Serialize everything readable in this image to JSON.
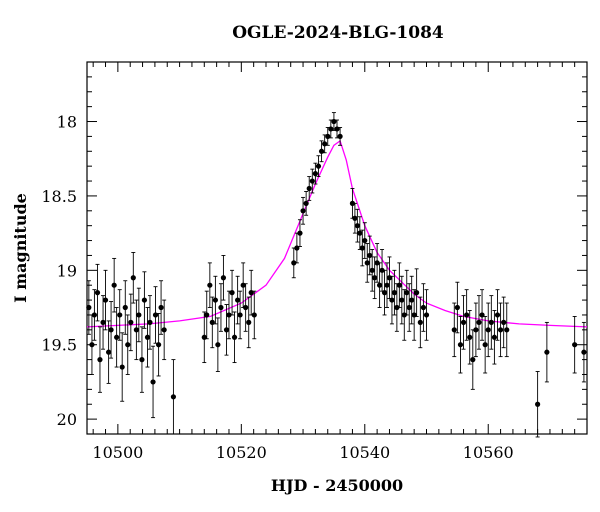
{
  "chart_data": {
    "type": "scatter",
    "title": "OGLE-2024-BLG-1084",
    "xlabel": "HJD - 2450000",
    "ylabel": "I magnitude",
    "xlim": [
      10495,
      10576
    ],
    "ylim": [
      20.1,
      17.6
    ],
    "y_inverted": true,
    "xticks": [
      10500,
      10520,
      10540,
      10560
    ],
    "yticks": [
      18,
      18.5,
      19,
      19.5,
      20
    ],
    "ytick_labels": [
      "18",
      "18.5",
      "19",
      "19.5",
      "20"
    ],
    "grid": false,
    "legend": "none",
    "colors": {
      "points": "#000000",
      "model": "#ff00ff"
    },
    "series": [
      {
        "kind": "points_with_errorbars",
        "x": [
          10495.3,
          10495.8,
          10496.2,
          10496.7,
          10497.1,
          10497.6,
          10498.0,
          10498.5,
          10498.9,
          10499.4,
          10499.8,
          10500.3,
          10500.7,
          10501.2,
          10501.6,
          10502.1,
          10502.5,
          10503.0,
          10503.4,
          10503.9,
          10504.3,
          10504.8,
          10505.2,
          10505.7,
          10506.1,
          10506.6,
          10507.0,
          10507.5,
          10509.0,
          10514.0,
          10514.4,
          10514.9,
          10515.3,
          10515.8,
          10516.2,
          10516.7,
          10517.1,
          10517.6,
          10518.0,
          10518.5,
          10518.9,
          10519.4,
          10519.8,
          10520.3,
          10520.7,
          10521.2,
          10521.6,
          10522.1,
          10528.5,
          10529.0,
          10529.5,
          10530.0,
          10530.5,
          10531.0,
          10531.5,
          10532.0,
          10532.5,
          10533.0,
          10533.5,
          10534.0,
          10534.5,
          10535.0,
          10535.5,
          10536.0,
          10538.0,
          10538.4,
          10538.8,
          10539.2,
          10539.6,
          10540.0,
          10540.4,
          10540.8,
          10541.2,
          10541.6,
          10542.0,
          10542.4,
          10542.8,
          10543.2,
          10543.6,
          10544.0,
          10544.4,
          10544.8,
          10545.2,
          10545.6,
          10546.0,
          10546.4,
          10546.8,
          10547.2,
          10547.6,
          10548.0,
          10548.4,
          10549.0,
          10549.5,
          10550.0,
          10554.5,
          10555.0,
          10555.5,
          10556.0,
          10556.5,
          10557.0,
          10557.5,
          10558.0,
          10558.5,
          10559.0,
          10559.5,
          10560.0,
          10560.5,
          10561.0,
          10561.5,
          10562.0,
          10562.5,
          10563.0,
          10568.0,
          10569.5,
          10574.0,
          10575.5
        ],
        "y": [
          19.25,
          19.5,
          19.3,
          19.15,
          19.6,
          19.35,
          19.2,
          19.55,
          19.4,
          19.1,
          19.45,
          19.3,
          19.65,
          19.25,
          19.5,
          19.35,
          19.05,
          19.4,
          19.3,
          19.6,
          19.2,
          19.45,
          19.35,
          19.75,
          19.3,
          19.5,
          19.25,
          19.4,
          19.85,
          19.45,
          19.3,
          19.1,
          19.35,
          19.2,
          19.5,
          19.25,
          19.05,
          19.4,
          19.3,
          19.15,
          19.45,
          19.2,
          19.3,
          19.1,
          19.25,
          19.35,
          19.15,
          19.3,
          18.95,
          18.85,
          18.75,
          18.6,
          18.55,
          18.45,
          18.4,
          18.35,
          18.3,
          18.2,
          18.15,
          18.1,
          18.05,
          18.0,
          18.05,
          18.1,
          18.55,
          18.65,
          18.7,
          18.75,
          18.85,
          18.8,
          18.95,
          18.9,
          19.0,
          19.05,
          18.95,
          19.1,
          19.0,
          19.15,
          19.1,
          19.05,
          19.2,
          19.15,
          19.25,
          19.1,
          19.2,
          19.3,
          19.15,
          19.25,
          19.2,
          19.3,
          19.15,
          19.35,
          19.25,
          19.3,
          19.4,
          19.25,
          19.5,
          19.35,
          19.3,
          19.45,
          19.6,
          19.4,
          19.35,
          19.3,
          19.5,
          19.4,
          19.35,
          19.45,
          19.3,
          19.4,
          19.35,
          19.4,
          19.9,
          19.55,
          19.5,
          19.55
        ],
        "yerr": [
          0.18,
          0.2,
          0.17,
          0.19,
          0.22,
          0.18,
          0.2,
          0.21,
          0.19,
          0.18,
          0.2,
          0.17,
          0.23,
          0.18,
          0.2,
          0.19,
          0.17,
          0.2,
          0.18,
          0.22,
          0.19,
          0.2,
          0.18,
          0.24,
          0.19,
          0.21,
          0.18,
          0.2,
          0.25,
          0.17,
          0.16,
          0.15,
          0.17,
          0.16,
          0.18,
          0.16,
          0.15,
          0.17,
          0.16,
          0.15,
          0.17,
          0.16,
          0.16,
          0.15,
          0.16,
          0.17,
          0.15,
          0.16,
          0.1,
          0.1,
          0.09,
          0.09,
          0.08,
          0.08,
          0.08,
          0.07,
          0.07,
          0.07,
          0.06,
          0.06,
          0.06,
          0.06,
          0.06,
          0.06,
          0.1,
          0.1,
          0.11,
          0.11,
          0.12,
          0.12,
          0.13,
          0.13,
          0.14,
          0.14,
          0.13,
          0.15,
          0.14,
          0.15,
          0.15,
          0.14,
          0.16,
          0.15,
          0.16,
          0.15,
          0.16,
          0.17,
          0.15,
          0.16,
          0.16,
          0.17,
          0.16,
          0.17,
          0.16,
          0.17,
          0.18,
          0.17,
          0.19,
          0.18,
          0.17,
          0.18,
          0.2,
          0.18,
          0.18,
          0.17,
          0.19,
          0.18,
          0.18,
          0.18,
          0.17,
          0.18,
          0.17,
          0.18,
          0.22,
          0.2,
          0.19,
          0.2
        ]
      },
      {
        "kind": "model_curve",
        "color": "#ff00ff",
        "x": [
          10495,
          10500,
          10505,
          10510,
          10515,
          10520,
          10524,
          10527,
          10530,
          10532,
          10534,
          10535,
          10536,
          10537,
          10538,
          10540,
          10542,
          10544,
          10546,
          10548,
          10550,
          10553,
          10556,
          10560,
          10565,
          10570,
          10576
        ],
        "y": [
          19.38,
          19.37,
          19.36,
          19.34,
          19.31,
          19.22,
          19.1,
          18.92,
          18.62,
          18.42,
          18.24,
          18.16,
          18.13,
          18.26,
          18.45,
          18.7,
          18.88,
          19.0,
          19.08,
          19.16,
          19.22,
          19.27,
          19.31,
          19.34,
          19.36,
          19.37,
          19.38
        ]
      }
    ]
  }
}
